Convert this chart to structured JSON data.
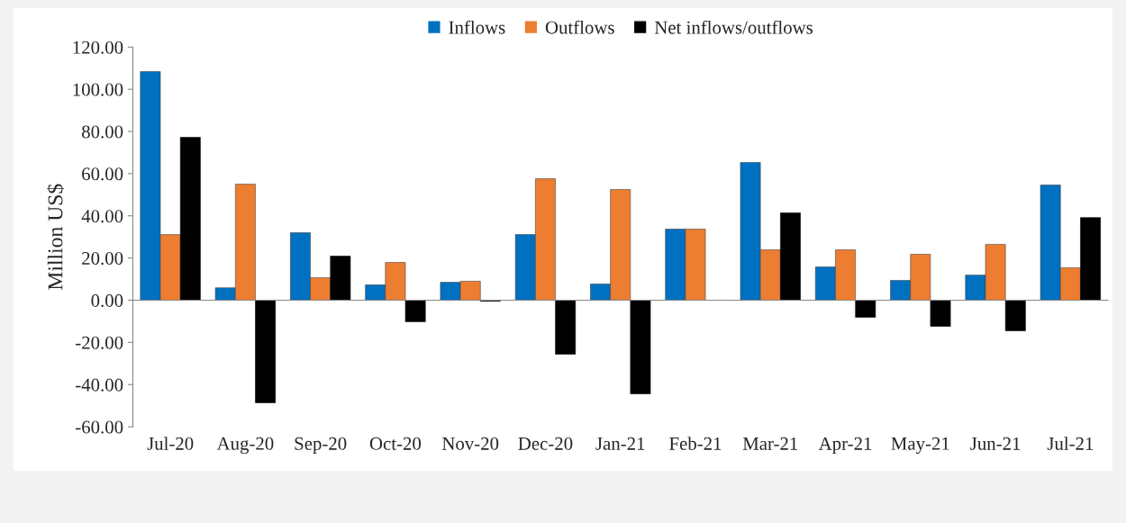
{
  "chart_data": {
    "type": "bar",
    "ylabel": "Million US$",
    "categories": [
      "Jul-20",
      "Aug-20",
      "Sep-20",
      "Oct-20",
      "Nov-20",
      "Dec-20",
      "Jan-21",
      "Feb-21",
      "Mar-21",
      "Apr-21",
      "May-21",
      "Jun-21",
      "Jul-21"
    ],
    "series": [
      {
        "name": "Inflows",
        "color": "#0070c0",
        "values": [
          108.4,
          5.9,
          32.0,
          7.3,
          8.5,
          31.1,
          7.7,
          33.7,
          65.3,
          15.8,
          9.4,
          11.9,
          54.6
        ]
      },
      {
        "name": "Outflows",
        "color": "#ed7d31",
        "values": [
          31.1,
          55.0,
          10.7,
          17.9,
          9.0,
          57.6,
          52.5,
          33.7,
          23.9,
          23.9,
          21.8,
          26.5,
          15.4
        ]
      },
      {
        "name": "Net inflows/outflows",
        "color": "#000000",
        "values": [
          77.2,
          -48.6,
          20.9,
          -10.2,
          -0.5,
          -25.6,
          -44.4,
          0.0,
          41.4,
          -8.1,
          -12.4,
          -14.5,
          39.2
        ]
      }
    ],
    "ylim": [
      -60,
      120
    ],
    "yticks": [
      {
        "value": -60,
        "label": "-60.00"
      },
      {
        "value": -40,
        "label": "-40.00"
      },
      {
        "value": -20,
        "label": "-20.00"
      },
      {
        "value": 0,
        "label": "0.00"
      },
      {
        "value": 20,
        "label": "20.00"
      },
      {
        "value": 40,
        "label": "40.00"
      },
      {
        "value": 60,
        "label": "60.00"
      },
      {
        "value": 80,
        "label": "80.00"
      },
      {
        "value": 100,
        "label": "100.00"
      },
      {
        "value": 120,
        "label": "120.00"
      }
    ],
    "legend": "top"
  }
}
